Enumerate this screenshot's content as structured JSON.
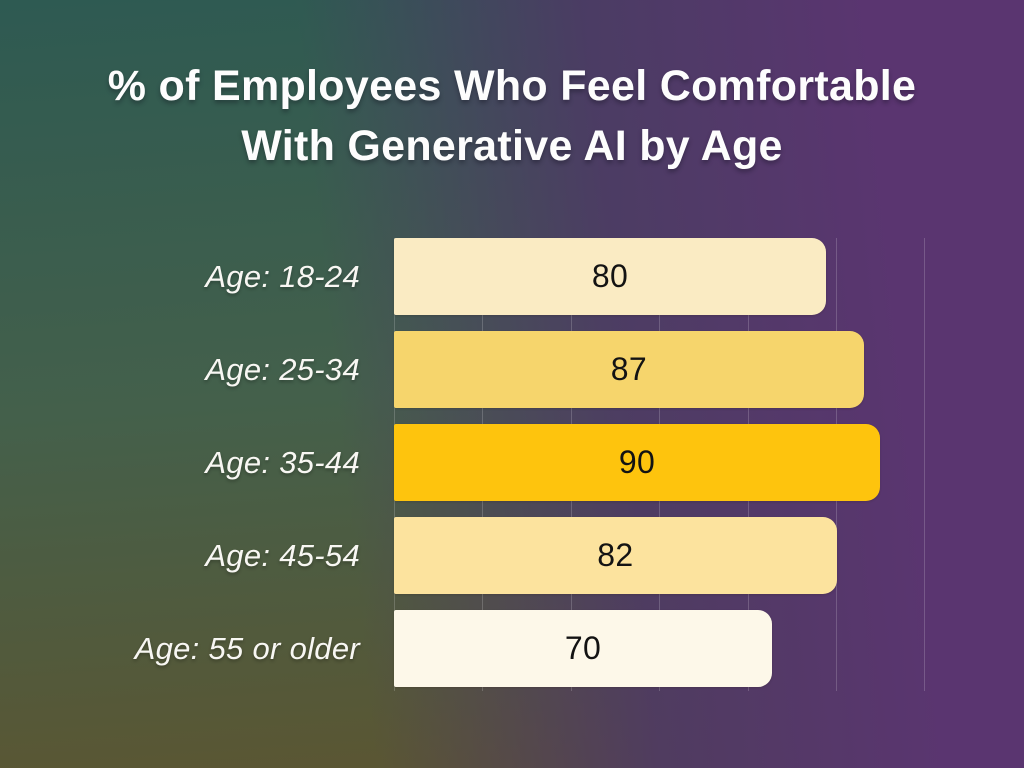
{
  "page": {
    "background": {
      "teal_top_left": "#2e5a52",
      "olive_bottom_left": "#5d5530",
      "purple_top_right": "#4a3a68",
      "purple_bottom_right": "#5b3470"
    },
    "title_color": "#fdfdfd",
    "category_label_color": "#f8f7f3",
    "gridline_color": "rgba(255,255,255,0.18)"
  },
  "chart_data": {
    "type": "bar",
    "orientation": "horizontal",
    "title": "% of Employees Who Feel Comfortable With Generative AI by Age",
    "title_lines": [
      "% of Employees Who Feel Comfortable",
      "With Generative AI by Age"
    ],
    "categories": [
      "Age: 18-24",
      "Age: 25-34",
      "Age: 35-44",
      "Age: 45-54",
      "Age: 55 or older"
    ],
    "values": [
      80,
      87,
      90,
      82,
      70
    ],
    "value_labels": [
      "80",
      "87",
      "90",
      "82",
      "70"
    ],
    "bar_colors": [
      "#faebc3",
      "#f6d56c",
      "#fec40d",
      "#fce39e",
      "#fdf8e9"
    ],
    "value_label_color": "#131313",
    "xlim": [
      0,
      110
    ],
    "grid": "vertical-faint",
    "gridline_count": 7,
    "legend": "none",
    "axis_tick_labels": "none"
  }
}
